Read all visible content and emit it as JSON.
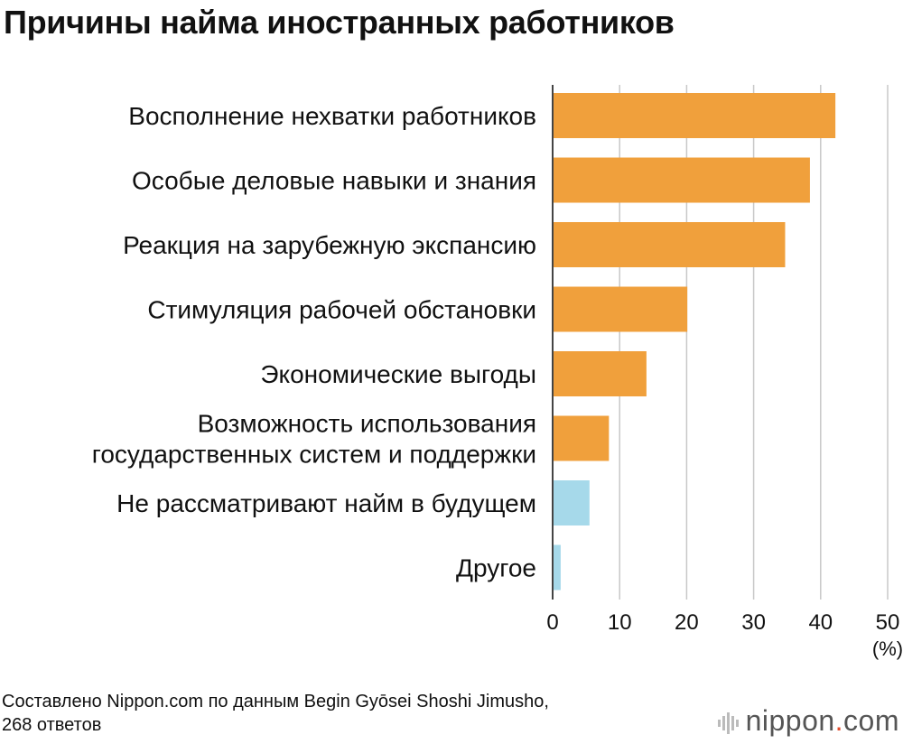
{
  "title": "Причины найма иностранных работников",
  "source": {
    "line1": "Составлено Nippon.com по данным Begin Gyōsei Shoshi Jimusho,",
    "line2": "268 ответов"
  },
  "brand": {
    "name": "nippon",
    "dot": ".",
    "suffix": "com"
  },
  "colors": {
    "primary": "#f0a03c",
    "secondary": "#a6d9ea",
    "grid": "#c8c8c8",
    "axis": "#444444"
  },
  "chart_data": {
    "type": "bar",
    "orientation": "horizontal",
    "unit_label": "(%)",
    "xlim": [
      0,
      50
    ],
    "ticks": [
      0,
      10,
      20,
      30,
      40,
      50
    ],
    "grid": true,
    "categories": [
      [
        "Восполнение нехватки работников"
      ],
      [
        "Особые деловые навыки и знания"
      ],
      [
        "Реакция на зарубежную экспансию"
      ],
      [
        "Стимуляция рабочей обстановки"
      ],
      [
        "Экономические выгоды"
      ],
      [
        "Возможность использования",
        "государственных систем и поддержки"
      ],
      [
        "Не рассматривают найм в будущем"
      ],
      [
        "Другое"
      ]
    ],
    "values": [
      42.2,
      38.4,
      34.7,
      20.1,
      14.0,
      8.4,
      5.5,
      1.2
    ],
    "bar_colors": [
      "primary",
      "primary",
      "primary",
      "primary",
      "primary",
      "primary",
      "secondary",
      "secondary"
    ]
  }
}
